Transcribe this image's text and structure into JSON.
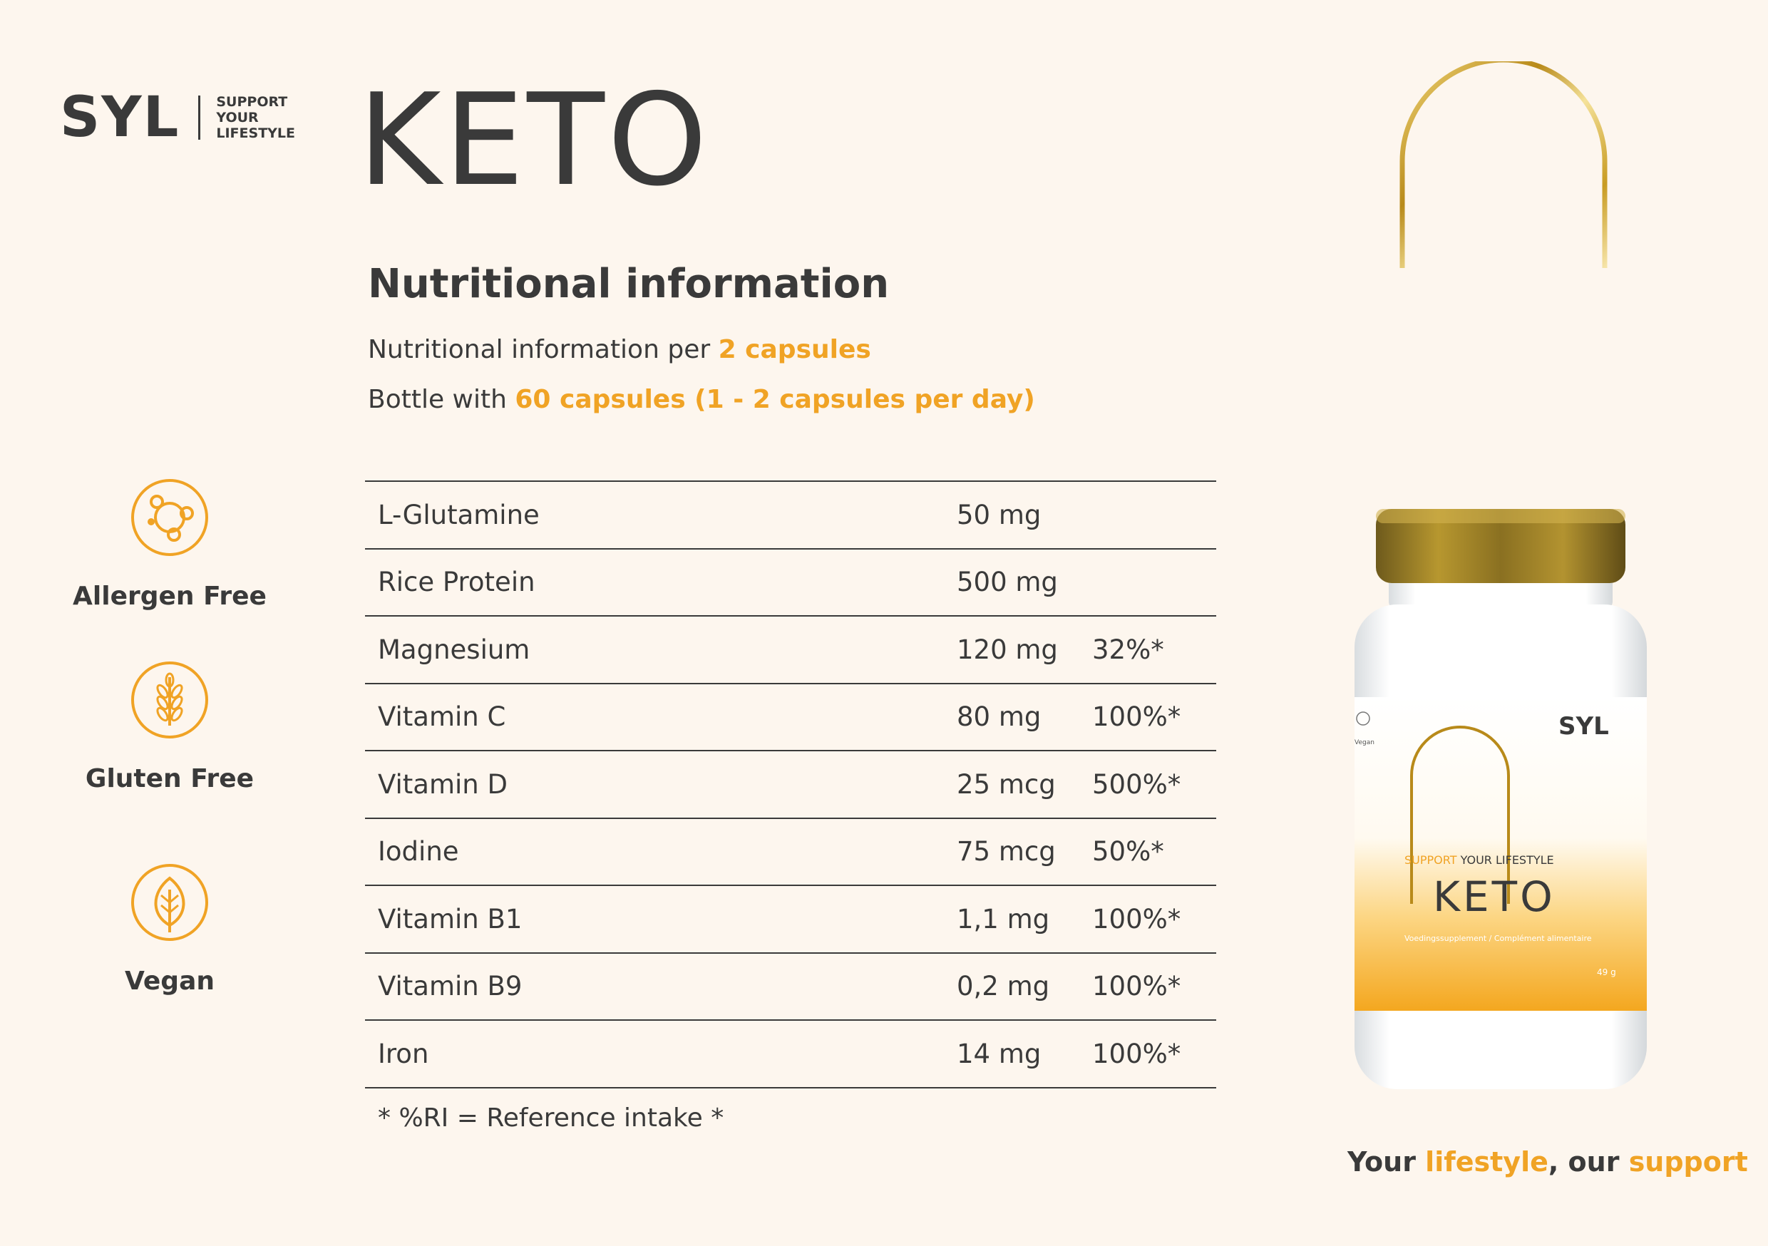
{
  "brand": {
    "logo_text": "SYL",
    "tagline_lines": [
      "SUPPORT",
      "YOUR",
      "LIFESTYLE"
    ]
  },
  "page_title": "KETO",
  "section_title": "Nutritional information",
  "info": {
    "line1_prefix": "Nutritional information per ",
    "line1_highlight": "2 capsules",
    "line2_prefix": "Bottle with ",
    "line2_highlight": "60 capsules (1 - 2 capsules per day)"
  },
  "features": [
    {
      "label": "Allergen Free",
      "icon": "molecule-icon"
    },
    {
      "label": "Gluten Free",
      "icon": "wheat-icon"
    },
    {
      "label": "Vegan",
      "icon": "leaf-icon"
    }
  ],
  "nutrition_table": [
    {
      "name": "L-Glutamine",
      "amount": "50 mg",
      "ri": ""
    },
    {
      "name": "Rice Protein",
      "amount": "500 mg",
      "ri": ""
    },
    {
      "name": "Magnesium",
      "amount": "120 mg",
      "ri": "32%*"
    },
    {
      "name": "Vitamin C",
      "amount": "80 mg",
      "ri": "100%*"
    },
    {
      "name": "Vitamin D",
      "amount": "25 mcg",
      "ri": "500%*"
    },
    {
      "name": "Iodine",
      "amount": "75 mcg",
      "ri": "50%*"
    },
    {
      "name": "Vitamin B1",
      "amount": "1,1 mg",
      "ri": "100%*"
    },
    {
      "name": "Vitamin B9",
      "amount": "0,2 mg",
      "ri": "100%*"
    },
    {
      "name": "Iron",
      "amount": "14 mg",
      "ri": "100%*"
    }
  ],
  "footnote": "* %RI  = Reference intake *",
  "bottle": {
    "brand": "SYL",
    "support": "SUPPORT",
    "your_lifestyle": " YOUR LIFESTYLE",
    "product": "KETO",
    "subtitle": "Voedingssupplement / Complément alimentaire",
    "weight": "49 g",
    "side_label": "Vegan"
  },
  "tagline": {
    "part1": "Your ",
    "hl1": "lifestyle",
    "part2": ", our ",
    "hl2": "support"
  },
  "colors": {
    "background": "#fdf6ee",
    "accent": "#f0a325",
    "text": "#3a3a3a",
    "gold": "#c9a227"
  }
}
